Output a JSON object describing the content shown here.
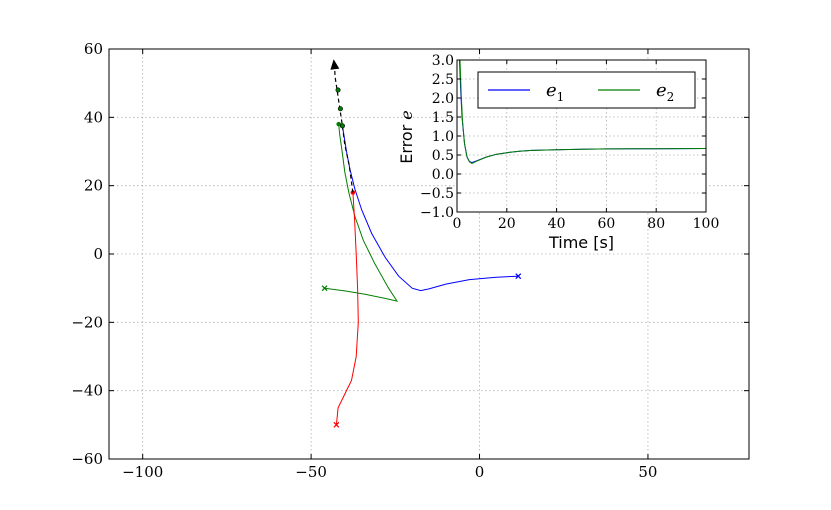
{
  "chart_data": [
    {
      "type": "line",
      "title": "",
      "xlabel": "",
      "ylabel": "",
      "xlim": [
        -110,
        80
      ],
      "ylim": [
        -60,
        60
      ],
      "xticks": [
        -100,
        -50,
        0,
        50
      ],
      "xtick_labels": [
        "−100",
        "−50",
        "0",
        "50"
      ],
      "yticks": [
        -60,
        -40,
        -20,
        0,
        20,
        40,
        60
      ],
      "ytick_labels": [
        "−60",
        "−40",
        "−20",
        "0",
        "20",
        "40",
        "60"
      ],
      "grid": true,
      "colors": {
        "blue": "#0000ff",
        "green": "#007f00",
        "red": "#ff0000",
        "black": "#000000"
      },
      "series": [
        {
          "color": "#0000ff",
          "points": [
            [
              11.5,
              -6.5
            ],
            [
              5,
              -6.8
            ],
            [
              -3,
              -7.5
            ],
            [
              -10,
              -8.8
            ],
            [
              -15,
              -10.2
            ],
            [
              -17.5,
              -10.7
            ],
            [
              -20,
              -10
            ],
            [
              -24,
              -6.5
            ],
            [
              -28,
              -1
            ],
            [
              -32,
              6
            ],
            [
              -35,
              13
            ],
            [
              -37,
              19
            ],
            [
              -38.5,
              25
            ],
            [
              -39.5,
              30
            ],
            [
              -40.3,
              35
            ],
            [
              -40.7,
              37.5
            ]
          ],
          "start": [
            11.5,
            -6.5
          ],
          "end": [
            -40.7,
            37.5
          ]
        },
        {
          "color": "#007f00",
          "points": [
            [
              -46,
              -10
            ],
            [
              -40,
              -10.8
            ],
            [
              -34,
              -11.8
            ],
            [
              -28,
              -13
            ],
            [
              -24.5,
              -13.8
            ],
            [
              -27,
              -10
            ],
            [
              -31,
              -3
            ],
            [
              -34.5,
              4
            ],
            [
              -37,
              11
            ],
            [
              -38.8,
              18
            ],
            [
              -40,
              24
            ],
            [
              -40.8,
              30
            ],
            [
              -41.5,
              35
            ],
            [
              -41.8,
              38
            ]
          ],
          "start": [
            -46,
            -10
          ],
          "end": [
            -41.8,
            38
          ]
        },
        {
          "color": "#ff0000",
          "points": [
            [
              -42.5,
              -50
            ],
            [
              -42,
              -45
            ],
            [
              -40,
              -41
            ],
            [
              -38,
              -37
            ],
            [
              -36.6,
              -30
            ],
            [
              -36,
              -20
            ],
            [
              -36.2,
              -10
            ],
            [
              -36.6,
              0
            ],
            [
              -37.1,
              10
            ],
            [
              -37.6,
              18
            ]
          ],
          "start": [
            -42.5,
            -50
          ],
          "end": [
            -37.6,
            18
          ]
        },
        {
          "color": "#000000",
          "style": "dashed",
          "points": [
            [
              -37.6,
              18
            ],
            [
              -38.7,
              26
            ],
            [
              -40,
              32
            ],
            [
              -40.7,
              37.5
            ],
            [
              -42,
              46
            ],
            [
              -42.9,
              52
            ],
            [
              -43,
              54.5
            ]
          ],
          "markers": [
            [
              -40.7,
              37.5
            ],
            [
              -41.3,
              42.5
            ],
            [
              -42,
              48
            ]
          ],
          "arrow_tip": [
            -43.3,
            57
          ]
        }
      ]
    },
    {
      "type": "line",
      "title": "",
      "xlabel": "Time [s]",
      "ylabel": "Error",
      "ylabel_symbol": "e",
      "xlim": [
        0,
        100
      ],
      "ylim": [
        -1.0,
        3.0
      ],
      "xticks": [
        0,
        20,
        40,
        60,
        80,
        100
      ],
      "xtick_labels": [
        "0",
        "20",
        "40",
        "60",
        "80",
        "100"
      ],
      "yticks": [
        -1.0,
        -0.5,
        0.0,
        0.5,
        1.0,
        1.5,
        2.0,
        2.5,
        3.0
      ],
      "ytick_labels": [
        "−1.0",
        "−0.5",
        "0.0",
        "0.5",
        "1.0",
        "1.5",
        "2.0",
        "2.5",
        "3.0"
      ],
      "grid": true,
      "legend": {
        "placement": "top",
        "entries": [
          {
            "label": "e",
            "sub": "1",
            "color": "#0000ff"
          },
          {
            "label": "e",
            "sub": "2",
            "color": "#007f00"
          }
        ]
      },
      "series": [
        {
          "name": "e1",
          "color": "#0000ff",
          "points": [
            [
              0,
              3.0
            ],
            [
              1,
              3.0
            ],
            [
              1.5,
              2.2
            ],
            [
              2,
              1.5
            ],
            [
              3,
              0.8
            ],
            [
              4,
              0.45
            ],
            [
              5,
              0.33
            ],
            [
              6,
              0.3
            ],
            [
              8,
              0.35
            ],
            [
              12,
              0.45
            ],
            [
              16,
              0.52
            ],
            [
              20,
              0.56
            ],
            [
              25,
              0.6
            ],
            [
              30,
              0.62
            ],
            [
              40,
              0.64
            ],
            [
              50,
              0.65
            ],
            [
              60,
              0.66
            ],
            [
              80,
              0.665
            ],
            [
              100,
              0.67
            ]
          ]
        },
        {
          "name": "e2",
          "color": "#007f00",
          "points": [
            [
              0,
              3.0
            ],
            [
              1.2,
              3.0
            ],
            [
              1.7,
              2.1
            ],
            [
              2.2,
              1.4
            ],
            [
              3,
              0.8
            ],
            [
              4,
              0.45
            ],
            [
              5,
              0.32
            ],
            [
              6,
              0.28
            ],
            [
              8,
              0.34
            ],
            [
              12,
              0.45
            ],
            [
              16,
              0.52
            ],
            [
              20,
              0.56
            ],
            [
              25,
              0.6
            ],
            [
              30,
              0.62
            ],
            [
              40,
              0.64
            ],
            [
              50,
              0.65
            ],
            [
              60,
              0.66
            ],
            [
              80,
              0.665
            ],
            [
              100,
              0.67
            ]
          ]
        }
      ]
    }
  ]
}
